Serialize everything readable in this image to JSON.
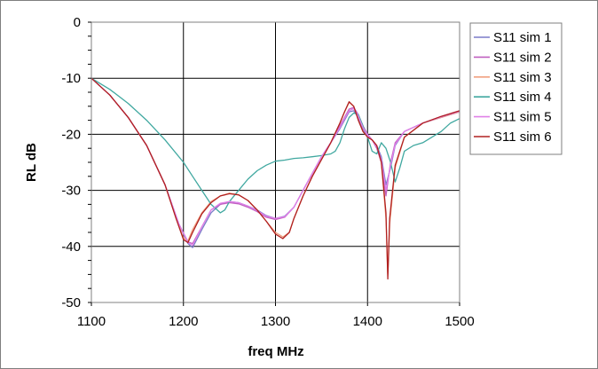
{
  "chart_data": {
    "type": "line",
    "title": "",
    "xlabel": "freq MHz",
    "ylabel": "RL dB",
    "xlim": [
      1100,
      1500
    ],
    "ylim": [
      -50,
      0
    ],
    "x_ticks": [
      1100,
      1200,
      1300,
      1400,
      1500
    ],
    "y_ticks": [
      0,
      -10,
      -20,
      -30,
      -40,
      -50
    ],
    "grid": true,
    "legend": "right",
    "series": [
      {
        "name": "S11 sim 1",
        "color": "#7b7bc8",
        "points": [
          [
            1100,
            -10
          ],
          [
            1120,
            -13
          ],
          [
            1140,
            -17
          ],
          [
            1160,
            -22
          ],
          [
            1180,
            -29
          ],
          [
            1195,
            -36
          ],
          [
            1205,
            -39.5
          ],
          [
            1210,
            -40.2
          ],
          [
            1220,
            -37
          ],
          [
            1230,
            -34
          ],
          [
            1240,
            -32.5
          ],
          [
            1250,
            -32
          ],
          [
            1260,
            -32.2
          ],
          [
            1270,
            -32.8
          ],
          [
            1280,
            -33.5
          ],
          [
            1290,
            -34.5
          ],
          [
            1300,
            -35
          ],
          [
            1310,
            -34.6
          ],
          [
            1320,
            -33
          ],
          [
            1330,
            -30
          ],
          [
            1340,
            -27
          ],
          [
            1350,
            -24
          ],
          [
            1360,
            -21.5
          ],
          [
            1370,
            -19
          ],
          [
            1375,
            -17.5
          ],
          [
            1380,
            -16
          ],
          [
            1385,
            -15.8
          ],
          [
            1390,
            -17
          ],
          [
            1395,
            -19
          ],
          [
            1400,
            -20.5
          ],
          [
            1405,
            -21
          ],
          [
            1410,
            -22
          ],
          [
            1415,
            -24
          ],
          [
            1420,
            -29
          ],
          [
            1425,
            -26
          ],
          [
            1430,
            -22
          ],
          [
            1440,
            -19.5
          ],
          [
            1460,
            -18
          ],
          [
            1480,
            -17
          ],
          [
            1500,
            -16
          ]
        ]
      },
      {
        "name": "S11 sim 2",
        "color": "#c060c0",
        "points": [
          [
            1100,
            -10
          ],
          [
            1120,
            -13
          ],
          [
            1140,
            -17
          ],
          [
            1160,
            -22
          ],
          [
            1180,
            -29
          ],
          [
            1195,
            -36
          ],
          [
            1205,
            -39.2
          ],
          [
            1210,
            -39.5
          ],
          [
            1220,
            -36.5
          ],
          [
            1230,
            -33.5
          ],
          [
            1240,
            -32.5
          ],
          [
            1250,
            -32.2
          ],
          [
            1260,
            -32.4
          ],
          [
            1270,
            -33
          ],
          [
            1280,
            -33.8
          ],
          [
            1290,
            -34.8
          ],
          [
            1300,
            -35.2
          ],
          [
            1310,
            -34.8
          ],
          [
            1320,
            -33
          ],
          [
            1330,
            -30
          ],
          [
            1340,
            -27
          ],
          [
            1350,
            -24
          ],
          [
            1360,
            -21.5
          ],
          [
            1370,
            -18.5
          ],
          [
            1375,
            -17
          ],
          [
            1380,
            -15.5
          ],
          [
            1385,
            -15.2
          ],
          [
            1390,
            -16.5
          ],
          [
            1395,
            -18.5
          ],
          [
            1400,
            -20
          ],
          [
            1405,
            -21
          ],
          [
            1410,
            -22.5
          ],
          [
            1415,
            -25
          ],
          [
            1420,
            -31
          ],
          [
            1425,
            -25
          ],
          [
            1430,
            -21.5
          ],
          [
            1440,
            -19.5
          ],
          [
            1460,
            -18
          ],
          [
            1480,
            -16.8
          ],
          [
            1500,
            -15.8
          ]
        ]
      },
      {
        "name": "S11 sim 3",
        "color": "#f0a080",
        "points": [
          [
            1100,
            -10
          ],
          [
            1120,
            -13
          ],
          [
            1140,
            -17
          ],
          [
            1160,
            -22
          ],
          [
            1180,
            -29
          ],
          [
            1192,
            -35
          ],
          [
            1200,
            -38.5
          ],
          [
            1205,
            -39
          ],
          [
            1210,
            -37
          ],
          [
            1220,
            -34
          ],
          [
            1230,
            -32
          ],
          [
            1240,
            -31
          ],
          [
            1250,
            -30.5
          ],
          [
            1260,
            -30.8
          ],
          [
            1270,
            -31.8
          ],
          [
            1280,
            -33.5
          ],
          [
            1290,
            -35.5
          ],
          [
            1300,
            -37.5
          ],
          [
            1308,
            -38.3
          ],
          [
            1315,
            -37.5
          ],
          [
            1320,
            -35
          ],
          [
            1330,
            -31
          ],
          [
            1340,
            -27.5
          ],
          [
            1350,
            -24.5
          ],
          [
            1360,
            -21.5
          ],
          [
            1370,
            -18
          ],
          [
            1375,
            -16
          ],
          [
            1380,
            -14.3
          ],
          [
            1385,
            -15
          ],
          [
            1390,
            -17.5
          ],
          [
            1395,
            -19.5
          ],
          [
            1400,
            -20.5
          ],
          [
            1405,
            -21
          ],
          [
            1410,
            -22
          ],
          [
            1415,
            -25
          ],
          [
            1420,
            -35
          ],
          [
            1422,
            -45
          ],
          [
            1424,
            -36
          ],
          [
            1430,
            -26
          ],
          [
            1440,
            -20.5
          ],
          [
            1460,
            -18
          ],
          [
            1480,
            -17
          ],
          [
            1500,
            -16
          ]
        ]
      },
      {
        "name": "S11 sim 4",
        "color": "#40a8a0",
        "points": [
          [
            1100,
            -10
          ],
          [
            1120,
            -12
          ],
          [
            1140,
            -14.5
          ],
          [
            1160,
            -17.5
          ],
          [
            1180,
            -21
          ],
          [
            1200,
            -25
          ],
          [
            1210,
            -27.5
          ],
          [
            1220,
            -30
          ],
          [
            1230,
            -32.5
          ],
          [
            1240,
            -34
          ],
          [
            1245,
            -33.5
          ],
          [
            1250,
            -32
          ],
          [
            1260,
            -30
          ],
          [
            1270,
            -28
          ],
          [
            1280,
            -26.5
          ],
          [
            1290,
            -25.5
          ],
          [
            1300,
            -24.8
          ],
          [
            1310,
            -24.6
          ],
          [
            1320,
            -24.3
          ],
          [
            1330,
            -24.2
          ],
          [
            1340,
            -24
          ],
          [
            1350,
            -23.8
          ],
          [
            1360,
            -23.5
          ],
          [
            1365,
            -23
          ],
          [
            1370,
            -21.5
          ],
          [
            1375,
            -19
          ],
          [
            1380,
            -17
          ],
          [
            1385,
            -16.2
          ],
          [
            1390,
            -16.5
          ],
          [
            1395,
            -18.5
          ],
          [
            1400,
            -20.5
          ],
          [
            1405,
            -23
          ],
          [
            1410,
            -23.5
          ],
          [
            1415,
            -21.5
          ],
          [
            1420,
            -22.5
          ],
          [
            1425,
            -25
          ],
          [
            1430,
            -28.5
          ],
          [
            1435,
            -26
          ],
          [
            1440,
            -23
          ],
          [
            1450,
            -22
          ],
          [
            1460,
            -21.5
          ],
          [
            1470,
            -20.5
          ],
          [
            1480,
            -19.5
          ],
          [
            1490,
            -18
          ],
          [
            1500,
            -17.2
          ]
        ]
      },
      {
        "name": "S11 sim 5",
        "color": "#e080e8",
        "points": [
          [
            1100,
            -10
          ],
          [
            1120,
            -13
          ],
          [
            1140,
            -17
          ],
          [
            1160,
            -22
          ],
          [
            1180,
            -29
          ],
          [
            1195,
            -36
          ],
          [
            1205,
            -39.3
          ],
          [
            1210,
            -39.8
          ],
          [
            1220,
            -36.5
          ],
          [
            1230,
            -33.5
          ],
          [
            1240,
            -32.3
          ],
          [
            1250,
            -32
          ],
          [
            1260,
            -32.2
          ],
          [
            1270,
            -32.8
          ],
          [
            1280,
            -33.6
          ],
          [
            1290,
            -34.6
          ],
          [
            1300,
            -35
          ],
          [
            1310,
            -34.7
          ],
          [
            1320,
            -33
          ],
          [
            1330,
            -30
          ],
          [
            1340,
            -27
          ],
          [
            1350,
            -24
          ],
          [
            1360,
            -21.5
          ],
          [
            1370,
            -18.8
          ],
          [
            1375,
            -17.2
          ],
          [
            1380,
            -15.8
          ],
          [
            1385,
            -15.4
          ],
          [
            1390,
            -16.8
          ],
          [
            1395,
            -18.8
          ],
          [
            1400,
            -20.2
          ],
          [
            1405,
            -21
          ],
          [
            1410,
            -22.2
          ],
          [
            1415,
            -24.5
          ],
          [
            1420,
            -30
          ],
          [
            1425,
            -25.5
          ],
          [
            1430,
            -21.8
          ],
          [
            1440,
            -19.5
          ],
          [
            1460,
            -18
          ],
          [
            1480,
            -16.9
          ],
          [
            1500,
            -15.9
          ]
        ]
      },
      {
        "name": "S11 sim 6",
        "color": "#b02020",
        "points": [
          [
            1100,
            -10
          ],
          [
            1120,
            -13
          ],
          [
            1140,
            -17
          ],
          [
            1160,
            -22
          ],
          [
            1180,
            -29
          ],
          [
            1192,
            -35
          ],
          [
            1200,
            -38.8
          ],
          [
            1205,
            -39.3
          ],
          [
            1210,
            -37.5
          ],
          [
            1220,
            -34.2
          ],
          [
            1230,
            -32.2
          ],
          [
            1240,
            -31
          ],
          [
            1250,
            -30.6
          ],
          [
            1260,
            -30.8
          ],
          [
            1270,
            -31.8
          ],
          [
            1280,
            -33.5
          ],
          [
            1290,
            -35.5
          ],
          [
            1300,
            -37.8
          ],
          [
            1308,
            -38.6
          ],
          [
            1315,
            -37.5
          ],
          [
            1320,
            -35
          ],
          [
            1330,
            -31
          ],
          [
            1340,
            -27.5
          ],
          [
            1350,
            -24.5
          ],
          [
            1360,
            -21.5
          ],
          [
            1370,
            -18
          ],
          [
            1375,
            -16
          ],
          [
            1380,
            -14.2
          ],
          [
            1385,
            -15
          ],
          [
            1390,
            -17.5
          ],
          [
            1395,
            -19.5
          ],
          [
            1400,
            -20.5
          ],
          [
            1405,
            -21
          ],
          [
            1410,
            -22
          ],
          [
            1415,
            -25
          ],
          [
            1420,
            -34
          ],
          [
            1422,
            -45.8
          ],
          [
            1424,
            -35
          ],
          [
            1430,
            -25.5
          ],
          [
            1440,
            -20.5
          ],
          [
            1460,
            -18
          ],
          [
            1480,
            -16.8
          ],
          [
            1500,
            -15.8
          ]
        ]
      }
    ]
  }
}
